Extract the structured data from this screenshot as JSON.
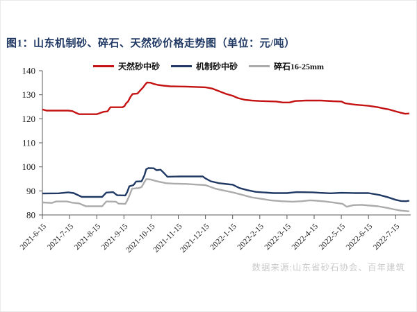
{
  "figure": {
    "title": "图1：山东机制砂、碎石、天然砂价格走势图（单位：元/吨）",
    "source_note": "数据来源:山东省砂石协会、百年建筑"
  },
  "colors": {
    "title": "#1f3864",
    "axis": "#595959",
    "tick_label": "#1a1a1a",
    "source_note": "#c9c9c9"
  },
  "chart_data": {
    "type": "line",
    "title": "山东机制砂、碎石、天然砂价格走势图",
    "unit": "元/吨",
    "xlabel": "",
    "ylabel": "",
    "ylim": [
      80,
      140
    ],
    "y_ticks": [
      80,
      90,
      100,
      110,
      120,
      130,
      140
    ],
    "grid": false,
    "legend_position": "top-center",
    "x_tick_labels": [
      "2021-6-15",
      "2021-7-15",
      "2021-8-15",
      "2021-9-15",
      "2021-10-15",
      "2021-11-15",
      "2021-12-15",
      "2022-1-15",
      "2022-2-15",
      "2022-3-15",
      "2022-4-15",
      "2022-5-15",
      "2022-6-15",
      "2022-7-15"
    ],
    "series": [
      {
        "name": "天然砂中砂",
        "color": "#c41212",
        "values_at_ticks": [
          123.9,
          123.4,
          121.9,
          124.9,
          135.0,
          133.5,
          133.1,
          129.6,
          127.4,
          126.9,
          127.6,
          127.2,
          125.4,
          123.1
        ],
        "points": [
          [
            0,
            123.9
          ],
          [
            0.15,
            123.4
          ],
          [
            0.95,
            123.4
          ],
          [
            1.1,
            123.2
          ],
          [
            1.25,
            122.4
          ],
          [
            1.35,
            121.9
          ],
          [
            2.0,
            121.9
          ],
          [
            2.25,
            122.9
          ],
          [
            2.4,
            123.1
          ],
          [
            2.5,
            124.8
          ],
          [
            2.95,
            124.8
          ],
          [
            3.02,
            125.3
          ],
          [
            3.08,
            126.4
          ],
          [
            3.15,
            127.2
          ],
          [
            3.25,
            129.3
          ],
          [
            3.32,
            130.3
          ],
          [
            3.5,
            130.5
          ],
          [
            3.6,
            131.8
          ],
          [
            3.7,
            133.0
          ],
          [
            3.78,
            134.2
          ],
          [
            3.85,
            135.1
          ],
          [
            3.98,
            135.0
          ],
          [
            4.1,
            134.5
          ],
          [
            4.25,
            134.1
          ],
          [
            4.45,
            133.8
          ],
          [
            4.7,
            133.5
          ],
          [
            5.3,
            133.4
          ],
          [
            6.0,
            133.1
          ],
          [
            6.25,
            132.6
          ],
          [
            6.5,
            131.5
          ],
          [
            6.75,
            130.4
          ],
          [
            7.0,
            129.6
          ],
          [
            7.2,
            128.6
          ],
          [
            7.45,
            127.9
          ],
          [
            7.7,
            127.6
          ],
          [
            8.0,
            127.4
          ],
          [
            8.6,
            127.2
          ],
          [
            8.85,
            126.8
          ],
          [
            9.1,
            126.8
          ],
          [
            9.3,
            127.4
          ],
          [
            9.7,
            127.6
          ],
          [
            10.25,
            127.6
          ],
          [
            10.7,
            127.3
          ],
          [
            11.0,
            127.2
          ],
          [
            11.15,
            126.4
          ],
          [
            11.5,
            125.9
          ],
          [
            11.8,
            125.6
          ],
          [
            12.0,
            125.4
          ],
          [
            12.35,
            124.8
          ],
          [
            12.6,
            124.2
          ],
          [
            12.75,
            123.9
          ],
          [
            13.0,
            123.1
          ],
          [
            13.2,
            122.5
          ],
          [
            13.35,
            122.1
          ],
          [
            13.5,
            122.2
          ]
        ]
      },
      {
        "name": "机制砂中砂",
        "color": "#1f3864",
        "values_at_ticks": [
          88.9,
          89.3,
          87.5,
          88.1,
          99.4,
          96.0,
          95.2,
          92.6,
          89.4,
          89.1,
          89.3,
          89.2,
          89.1,
          86.3
        ],
        "points": [
          [
            0,
            88.9
          ],
          [
            0.6,
            89.0
          ],
          [
            0.95,
            89.4
          ],
          [
            1.15,
            89.1
          ],
          [
            1.45,
            87.5
          ],
          [
            2.2,
            87.5
          ],
          [
            2.35,
            89.3
          ],
          [
            2.6,
            89.5
          ],
          [
            2.75,
            88.2
          ],
          [
            3.05,
            88.1
          ],
          [
            3.12,
            89.5
          ],
          [
            3.2,
            91.9
          ],
          [
            3.35,
            92.4
          ],
          [
            3.45,
            93.9
          ],
          [
            3.65,
            94.0
          ],
          [
            3.75,
            96.3
          ],
          [
            3.82,
            99.0
          ],
          [
            3.9,
            99.5
          ],
          [
            4.1,
            99.4
          ],
          [
            4.2,
            98.6
          ],
          [
            4.35,
            98.8
          ],
          [
            4.45,
            97.7
          ],
          [
            4.6,
            95.9
          ],
          [
            5.1,
            96.0
          ],
          [
            5.9,
            96.0
          ],
          [
            6.0,
            95.2
          ],
          [
            6.2,
            94.0
          ],
          [
            6.5,
            93.2
          ],
          [
            6.9,
            92.7
          ],
          [
            7.0,
            92.6
          ],
          [
            7.25,
            91.2
          ],
          [
            7.55,
            90.3
          ],
          [
            7.85,
            89.6
          ],
          [
            8.1,
            89.4
          ],
          [
            8.5,
            89.1
          ],
          [
            9.0,
            89.1
          ],
          [
            9.35,
            89.5
          ],
          [
            9.95,
            89.4
          ],
          [
            10.2,
            89.2
          ],
          [
            10.6,
            89.0
          ],
          [
            11.0,
            89.2
          ],
          [
            11.5,
            89.1
          ],
          [
            12.0,
            89.1
          ],
          [
            12.4,
            88.3
          ],
          [
            12.7,
            87.4
          ],
          [
            13.0,
            86.3
          ],
          [
            13.2,
            85.8
          ],
          [
            13.38,
            85.7
          ],
          [
            13.5,
            85.9
          ]
        ]
      },
      {
        "name": "碎石16-25mm",
        "color": "#ababab",
        "values_at_ticks": [
          85.2,
          85.6,
          83.6,
          84.6,
          94.7,
          93.1,
          92.4,
          89.4,
          86.8,
          85.5,
          85.9,
          84.6,
          83.9,
          82.3
        ],
        "points": [
          [
            0,
            85.2
          ],
          [
            0.35,
            85.0
          ],
          [
            0.5,
            85.6
          ],
          [
            0.9,
            85.6
          ],
          [
            1.1,
            85.1
          ],
          [
            1.35,
            84.8
          ],
          [
            1.6,
            83.6
          ],
          [
            2.2,
            83.6
          ],
          [
            2.35,
            85.6
          ],
          [
            2.7,
            85.5
          ],
          [
            2.8,
            84.7
          ],
          [
            3.05,
            84.6
          ],
          [
            3.12,
            86.0
          ],
          [
            3.2,
            88.0
          ],
          [
            3.3,
            90.9
          ],
          [
            3.55,
            91.2
          ],
          [
            3.65,
            91.6
          ],
          [
            3.72,
            93.0
          ],
          [
            3.82,
            94.9
          ],
          [
            4.0,
            94.7
          ],
          [
            4.15,
            94.2
          ],
          [
            4.3,
            93.8
          ],
          [
            4.55,
            93.2
          ],
          [
            4.85,
            93.0
          ],
          [
            5.3,
            92.9
          ],
          [
            5.7,
            92.6
          ],
          [
            6.0,
            92.4
          ],
          [
            6.15,
            91.8
          ],
          [
            6.35,
            91.0
          ],
          [
            6.65,
            90.2
          ],
          [
            7.0,
            89.4
          ],
          [
            7.35,
            88.4
          ],
          [
            7.7,
            87.3
          ],
          [
            8.0,
            86.8
          ],
          [
            8.4,
            86.1
          ],
          [
            8.8,
            85.7
          ],
          [
            9.2,
            85.5
          ],
          [
            9.55,
            85.7
          ],
          [
            9.85,
            86.1
          ],
          [
            10.1,
            85.9
          ],
          [
            10.4,
            85.6
          ],
          [
            10.75,
            85.1
          ],
          [
            11.05,
            84.6
          ],
          [
            11.2,
            83.4
          ],
          [
            11.45,
            84.1
          ],
          [
            11.75,
            84.2
          ],
          [
            12.05,
            83.9
          ],
          [
            12.35,
            83.6
          ],
          [
            12.65,
            83.0
          ],
          [
            12.95,
            82.3
          ],
          [
            13.2,
            81.8
          ],
          [
            13.5,
            81.5
          ]
        ]
      }
    ]
  }
}
